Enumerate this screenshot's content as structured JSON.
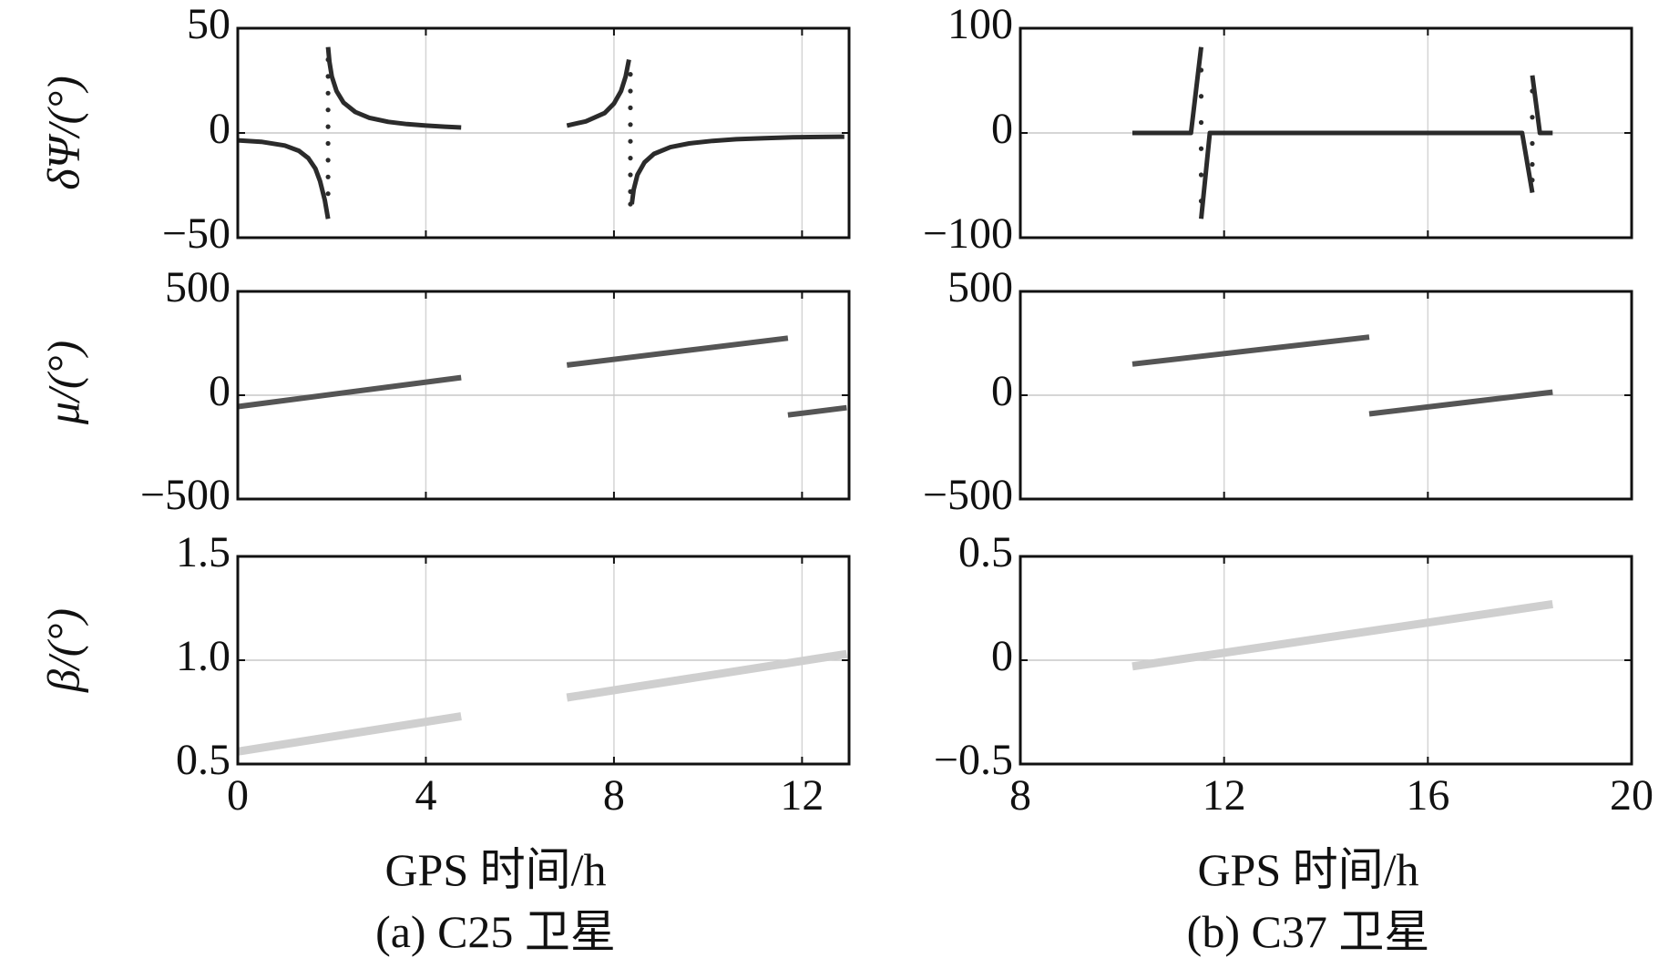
{
  "captions": {
    "left": "(a) C25 卫星",
    "right": "(b) C37 卫星"
  },
  "xlabel_text": "GPS 时间/h",
  "ylabel_texts": {
    "dpsi": "δΨ/(°)",
    "mu": "μ/(°)",
    "beta": "β/(°)"
  },
  "chart_data": [
    {
      "type": "line",
      "panel": "a-top",
      "ylabel": "δΨ/(°)",
      "xlim": [
        0,
        13
      ],
      "ylim": [
        -50,
        50
      ],
      "xticks": [
        0,
        4,
        8,
        12
      ],
      "yticks": [
        -50,
        0,
        50
      ],
      "ytick_labels": [
        "−50",
        "0",
        "50"
      ],
      "show_x_ticklabels": false,
      "grid": true,
      "series": [
        {
          "color": "#2b2b2b",
          "style": "line",
          "x": [
            0.0,
            0.5,
            1.0,
            1.3,
            1.5,
            1.65,
            1.75,
            1.85,
            1.92
          ],
          "y": [
            -3.5,
            -4.2,
            -6.0,
            -8.5,
            -12.0,
            -17.0,
            -23.0,
            -32.0,
            -41.0
          ]
        },
        {
          "color": "#2b2b2b",
          "style": "line",
          "x": [
            1.92,
            1.95,
            2.0,
            2.1,
            2.25,
            2.5,
            2.8,
            3.2,
            3.6,
            4.0,
            4.4,
            4.75
          ],
          "y": [
            41.0,
            34.0,
            27.0,
            20.0,
            14.5,
            10.0,
            7.2,
            5.3,
            4.2,
            3.5,
            3.0,
            2.6
          ]
        },
        {
          "color": "#2b2b2b",
          "style": "line",
          "x": [
            7.0,
            7.4,
            7.8,
            8.0,
            8.15,
            8.25,
            8.32
          ],
          "y": [
            3.5,
            5.5,
            9.5,
            14.0,
            20.0,
            27.0,
            35.0
          ]
        },
        {
          "color": "#2b2b2b",
          "style": "line",
          "x": [
            8.38,
            8.42,
            8.5,
            8.65,
            8.85,
            9.2,
            9.6,
            10.1,
            10.6,
            11.2,
            11.8,
            12.4,
            12.9
          ],
          "y": [
            -34.0,
            -27.0,
            -20.0,
            -14.0,
            -10.0,
            -6.8,
            -5.0,
            -3.8,
            -3.0,
            -2.5,
            -2.1,
            -1.9,
            -1.8
          ]
        },
        {
          "color": "#2b2b2b",
          "style": "dots",
          "x": [
            1.92,
            1.92,
            1.92,
            1.92,
            1.92,
            1.92,
            1.92,
            1.92,
            1.92,
            8.35,
            8.35,
            8.35,
            8.35,
            8.35,
            8.35,
            8.35,
            8.35,
            8.35
          ],
          "y": [
            35,
            27,
            19,
            11,
            3,
            -5,
            -13,
            -21,
            -29,
            28,
            20,
            12,
            4,
            -4,
            -12,
            -20,
            -28,
            -34
          ]
        }
      ]
    },
    {
      "type": "line",
      "panel": "b-top",
      "ylabel": "δΨ/(°)",
      "xlim": [
        8,
        20
      ],
      "ylim": [
        -100,
        100
      ],
      "xticks": [
        8,
        12,
        16,
        20
      ],
      "yticks": [
        -100,
        0,
        100
      ],
      "ytick_labels": [
        "−100",
        "0",
        "100"
      ],
      "show_x_ticklabels": false,
      "grid": true,
      "series": [
        {
          "color": "#2b2b2b",
          "style": "line",
          "x": [
            10.2,
            11.35,
            11.55
          ],
          "y": [
            0.0,
            0.0,
            82.0
          ]
        },
        {
          "color": "#2b2b2b",
          "style": "line",
          "x": [
            11.55,
            11.72,
            17.85,
            18.05
          ],
          "y": [
            -82.0,
            0.0,
            0.0,
            -57.0
          ]
        },
        {
          "color": "#2b2b2b",
          "style": "line",
          "x": [
            18.05,
            18.2,
            18.45
          ],
          "y": [
            55.0,
            0.0,
            0.0
          ]
        },
        {
          "color": "#2b2b2b",
          "style": "dots",
          "x": [
            11.55,
            11.55,
            11.55,
            11.55,
            11.55,
            11.55,
            18.05,
            18.05,
            18.05,
            18.05,
            18.05
          ],
          "y": [
            60,
            35,
            10,
            -15,
            -40,
            -65,
            40,
            15,
            -10,
            -30,
            -45
          ]
        }
      ]
    },
    {
      "type": "line",
      "panel": "a-middle",
      "ylabel": "μ/(°)",
      "xlim": [
        0,
        13
      ],
      "ylim": [
        -500,
        500
      ],
      "xticks": [
        0,
        4,
        8,
        12
      ],
      "yticks": [
        -500,
        0,
        500
      ],
      "ytick_labels": [
        "−500",
        "0",
        "500"
      ],
      "show_x_ticklabels": false,
      "grid": true,
      "series": [
        {
          "color": "#555555",
          "style": "line",
          "x": [
            0.0,
            4.75
          ],
          "y": [
            -55,
            85
          ]
        },
        {
          "color": "#555555",
          "style": "line",
          "x": [
            7.0,
            11.7
          ],
          "y": [
            145,
            275
          ]
        },
        {
          "color": "#555555",
          "style": "line",
          "x": [
            11.7,
            12.95
          ],
          "y": [
            -95,
            -60
          ]
        }
      ]
    },
    {
      "type": "line",
      "panel": "b-middle",
      "ylabel": "μ/(°)",
      "xlim": [
        8,
        20
      ],
      "ylim": [
        -500,
        500
      ],
      "xticks": [
        8,
        12,
        16,
        20
      ],
      "yticks": [
        -500,
        0,
        500
      ],
      "ytick_labels": [
        "−500",
        "0",
        "500"
      ],
      "show_x_ticklabels": false,
      "grid": true,
      "series": [
        {
          "color": "#555555",
          "style": "line",
          "x": [
            10.2,
            14.85
          ],
          "y": [
            150,
            280
          ]
        },
        {
          "color": "#555555",
          "style": "line",
          "x": [
            14.85,
            18.45
          ],
          "y": [
            -90,
            15
          ]
        }
      ]
    },
    {
      "type": "line",
      "panel": "a-bottom",
      "ylabel": "β/(°)",
      "xlabel": "GPS 时间/h",
      "xlim": [
        0,
        13
      ],
      "ylim": [
        0.5,
        1.5
      ],
      "xticks": [
        0,
        4,
        8,
        12
      ],
      "xtick_labels": [
        "0",
        "4",
        "8",
        "12"
      ],
      "yticks": [
        0.5,
        1.0,
        1.5
      ],
      "ytick_labels": [
        "0.5",
        "1.0",
        "1.5"
      ],
      "zero_line": 1.0,
      "show_x_ticklabels": true,
      "grid": true,
      "series": [
        {
          "color": "#cfcfcf",
          "style": "line",
          "x": [
            0.0,
            4.75
          ],
          "y": [
            0.56,
            0.73
          ]
        },
        {
          "color": "#cfcfcf",
          "style": "line",
          "x": [
            7.0,
            12.95
          ],
          "y": [
            0.82,
            1.03
          ]
        }
      ]
    },
    {
      "type": "line",
      "panel": "b-bottom",
      "ylabel": "β/(°)",
      "xlabel": "GPS 时间/h",
      "xlim": [
        8,
        20
      ],
      "ylim": [
        -0.5,
        0.5
      ],
      "xticks": [
        8,
        12,
        16,
        20
      ],
      "xtick_labels": [
        "8",
        "12",
        "16",
        "20"
      ],
      "yticks": [
        -0.5,
        0,
        0.5
      ],
      "ytick_labels": [
        "−0.5",
        "0",
        "0.5"
      ],
      "show_x_ticklabels": true,
      "grid": true,
      "series": [
        {
          "color": "#cfcfcf",
          "style": "line",
          "x": [
            10.2,
            18.45
          ],
          "y": [
            -0.03,
            0.27
          ]
        }
      ]
    }
  ]
}
